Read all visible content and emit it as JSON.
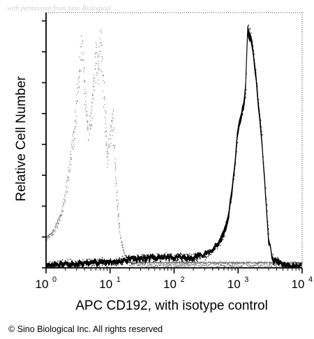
{
  "watermark": "with permission from Sino Biological",
  "copyright": "© Sino Biological Inc. All rights reserved",
  "chart_data": {
    "type": "area",
    "xlabel": "APC CD192, with isotype control",
    "ylabel": "Relative Cell Number",
    "xscale": "log",
    "xlim": [
      1,
      10000
    ],
    "ylim": [
      0,
      1
    ],
    "x_ticks": [
      {
        "base": "10",
        "exp": "0",
        "value": 1
      },
      {
        "base": "10",
        "exp": "1",
        "value": 10
      },
      {
        "base": "10",
        "exp": "2",
        "value": 100
      },
      {
        "base": "10",
        "exp": "3",
        "value": 1000
      },
      {
        "base": "10",
        "exp": "4",
        "value": 10000
      }
    ],
    "y_ticks_unlabeled": 8,
    "series": [
      {
        "role": "isotype-control",
        "style": "dotted-gray",
        "color": "#6a6a6a",
        "x": [
          1.0,
          1.3,
          1.7,
          2.0,
          2.3,
          2.7,
          3.0,
          3.3,
          3.6,
          4.0,
          4.5,
          5.0,
          5.5,
          6.0,
          6.5,
          7.0,
          8.0,
          9.0,
          10.0,
          11.0,
          12.0,
          13.0,
          14.0,
          15.0,
          17.0,
          20.0
        ],
        "y": [
          0.12,
          0.15,
          0.22,
          0.3,
          0.42,
          0.55,
          0.68,
          0.8,
          0.92,
          0.72,
          0.55,
          0.62,
          0.75,
          0.88,
          0.8,
          0.96,
          0.7,
          0.45,
          0.55,
          0.62,
          0.4,
          0.25,
          0.15,
          0.1,
          0.05,
          0.03
        ]
      },
      {
        "role": "apc-cd192",
        "style": "solid-black",
        "color": "#000000",
        "x": [
          1.0,
          2.0,
          5.0,
          10.0,
          20.0,
          50.0,
          100.0,
          200.0,
          300.0,
          400.0,
          500.0,
          600.0,
          700.0,
          800.0,
          900.0,
          1000.0,
          1100.0,
          1200.0,
          1300.0,
          1400.0,
          1500.0,
          1700.0,
          2000.0,
          2300.0,
          2700.0,
          3000.0,
          3500.0,
          5000.0,
          10000.0
        ],
        "y": [
          0.02,
          0.02,
          0.03,
          0.03,
          0.04,
          0.05,
          0.05,
          0.05,
          0.06,
          0.08,
          0.11,
          0.15,
          0.22,
          0.32,
          0.45,
          0.58,
          0.62,
          0.66,
          0.72,
          0.98,
          0.96,
          0.9,
          0.72,
          0.55,
          0.3,
          0.12,
          0.04,
          0.02,
          0.01
        ]
      }
    ]
  }
}
